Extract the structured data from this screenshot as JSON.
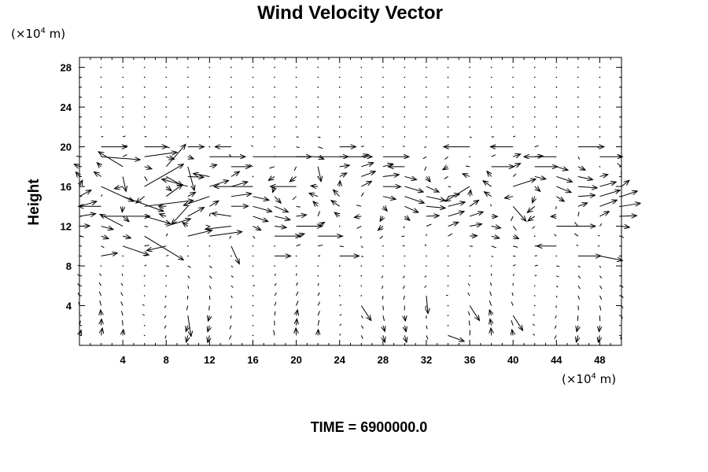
{
  "chart_data": {
    "type": "vector_field",
    "title": "Wind Velocity Vector",
    "x_unit": {
      "prefix": "(×10",
      "exp": "4",
      "suffix": " m)"
    },
    "y_unit": {
      "prefix": "(×10",
      "exp": "4",
      "suffix": " m)"
    },
    "ylabel": "Height",
    "xlabel": "",
    "xlim": [
      0,
      50
    ],
    "ylim": [
      0,
      29
    ],
    "x_ticks": [
      4,
      8,
      12,
      16,
      20,
      24,
      28,
      32,
      36,
      40,
      44,
      48
    ],
    "y_ticks": [
      4,
      8,
      12,
      16,
      20,
      24,
      28
    ],
    "x_ticks_minor": [
      1,
      2,
      3,
      5,
      6,
      7,
      9,
      10,
      11,
      13,
      14,
      15,
      17,
      18,
      19,
      21,
      22,
      23,
      25,
      26,
      27,
      29,
      30,
      31,
      33,
      34,
      35,
      37,
      38,
      39,
      41,
      42,
      43,
      45,
      46,
      47,
      49
    ],
    "y_ticks_minor": [
      1,
      2,
      3,
      5,
      6,
      7,
      9,
      10,
      11,
      13,
      14,
      15,
      17,
      18,
      19,
      21,
      22,
      23,
      25,
      26,
      27
    ],
    "grid": false,
    "vector_grid": {
      "x_start": 0,
      "x_step": 2,
      "x_count": 26,
      "y_start": 0,
      "y_step": 1,
      "y_count": 29
    },
    "vector_scale_units_per_speed": 1.5,
    "vectors": [
      {
        "x": 2,
        "y": 20,
        "u": 1.6,
        "v": 0.0
      },
      {
        "x": 6,
        "y": 20,
        "u": 1.4,
        "v": 0.0
      },
      {
        "x": 10,
        "y": 20,
        "u": 1.0,
        "v": 0.0
      },
      {
        "x": 14,
        "y": 20,
        "u": -1.0,
        "v": 0.0
      },
      {
        "x": 24,
        "y": 20,
        "u": 1.0,
        "v": 0.0
      },
      {
        "x": 36,
        "y": 20,
        "u": -1.6,
        "v": 0.0
      },
      {
        "x": 40,
        "y": 20,
        "u": -1.4,
        "v": 0.0
      },
      {
        "x": 46,
        "y": 20,
        "u": 1.6,
        "v": 0.0
      },
      {
        "x": 2,
        "y": 19,
        "u": 2.4,
        "v": -0.2
      },
      {
        "x": 6,
        "y": 19,
        "u": 2.0,
        "v": 0.3
      },
      {
        "x": 12,
        "y": 19,
        "u": 2.2,
        "v": 0.0
      },
      {
        "x": 16,
        "y": 19,
        "u": 3.6,
        "v": 0.0
      },
      {
        "x": 20,
        "y": 19,
        "u": 3.2,
        "v": 0.0
      },
      {
        "x": 24,
        "y": 19,
        "u": 2.0,
        "v": 0.0
      },
      {
        "x": 28,
        "y": 19,
        "u": 1.6,
        "v": 0.0
      },
      {
        "x": 44,
        "y": 19,
        "u": -2.0,
        "v": 0.0
      },
      {
        "x": 48,
        "y": 19,
        "u": 1.4,
        "v": 0.0
      },
      {
        "x": 4,
        "y": 18,
        "u": -1.5,
        "v": 1.0
      },
      {
        "x": 8,
        "y": 18,
        "u": 1.2,
        "v": 1.5
      },
      {
        "x": 10,
        "y": 18,
        "u": 0.4,
        "v": -1.6
      },
      {
        "x": 14,
        "y": 18,
        "u": 1.2,
        "v": 0.0
      },
      {
        "x": 22,
        "y": 18,
        "u": 0.2,
        "v": -1.0
      },
      {
        "x": 30,
        "y": 18,
        "u": -1.0,
        "v": 0.0
      },
      {
        "x": 38,
        "y": 18,
        "u": 1.4,
        "v": 0.0
      },
      {
        "x": 42,
        "y": 18,
        "u": 1.4,
        "v": 0.0
      },
      {
        "x": 4,
        "y": 17,
        "u": 0.2,
        "v": -1.0
      },
      {
        "x": 8,
        "y": 17,
        "u": 1.0,
        "v": -0.6
      },
      {
        "x": 12,
        "y": 17,
        "u": -1.0,
        "v": 0.2
      },
      {
        "x": 16,
        "y": 16,
        "u": -2.4,
        "v": 0.0
      },
      {
        "x": 20,
        "y": 16,
        "u": -1.6,
        "v": 0.0
      },
      {
        "x": 2,
        "y": 16,
        "u": 2.0,
        "v": -1.0
      },
      {
        "x": 6,
        "y": 16,
        "u": 2.4,
        "v": 1.5
      },
      {
        "x": 10,
        "y": 16,
        "u": -1.6,
        "v": 0.5
      },
      {
        "x": 36,
        "y": 16,
        "u": -1.5,
        "v": -1.0
      },
      {
        "x": 40,
        "y": 16,
        "u": 1.4,
        "v": 0.5
      },
      {
        "x": 4,
        "y": 15,
        "u": 2.5,
        "v": -1.0
      },
      {
        "x": 8,
        "y": 15,
        "u": 1.0,
        "v": 0.8
      },
      {
        "x": 12,
        "y": 15,
        "u": -1.6,
        "v": -0.6
      },
      {
        "x": 2,
        "y": 14,
        "u": -1.4,
        "v": 0.0
      },
      {
        "x": 6,
        "y": 14,
        "u": 3.0,
        "v": 0.4
      },
      {
        "x": 10,
        "y": 14,
        "u": -1.0,
        "v": -1.2
      },
      {
        "x": 40,
        "y": 14,
        "u": 0.8,
        "v": -1.0
      },
      {
        "x": 2,
        "y": 13,
        "u": 3.0,
        "v": 0.0
      },
      {
        "x": 6,
        "y": 13,
        "u": 1.6,
        "v": -0.5
      },
      {
        "x": 10,
        "y": 13,
        "u": 1.0,
        "v": 0.6
      },
      {
        "x": 14,
        "y": 13,
        "u": -1.2,
        "v": 0.2
      },
      {
        "x": 4,
        "y": 12,
        "u": -1.4,
        "v": 0.8
      },
      {
        "x": 8,
        "y": 12,
        "u": 1.5,
        "v": 0.5
      },
      {
        "x": 14,
        "y": 12,
        "u": -1.6,
        "v": -0.2
      },
      {
        "x": 20,
        "y": 12,
        "u": 1.6,
        "v": 0.0
      },
      {
        "x": 44,
        "y": 12,
        "u": 2.4,
        "v": 0.0
      },
      {
        "x": 6,
        "y": 11,
        "u": 2.4,
        "v": -1.6
      },
      {
        "x": 10,
        "y": 11,
        "u": 1.5,
        "v": 0.4
      },
      {
        "x": 12,
        "y": 11,
        "u": 2.0,
        "v": 0.3
      },
      {
        "x": 18,
        "y": 11,
        "u": 1.6,
        "v": 0.0
      },
      {
        "x": 22,
        "y": 11,
        "u": 1.5,
        "v": 0.0
      },
      {
        "x": 4,
        "y": 10,
        "u": 1.6,
        "v": -0.6
      },
      {
        "x": 8,
        "y": 10,
        "u": -1.2,
        "v": -0.3
      },
      {
        "x": 14,
        "y": 10,
        "u": 0.5,
        "v": -1.2
      },
      {
        "x": 44,
        "y": 10,
        "u": -1.2,
        "v": 0.0
      },
      {
        "x": 2,
        "y": 9,
        "u": 1.0,
        "v": 0.2
      },
      {
        "x": 18,
        "y": 9,
        "u": 1.0,
        "v": 0.0
      },
      {
        "x": 24,
        "y": 9,
        "u": 1.2,
        "v": 0.0
      },
      {
        "x": 46,
        "y": 9,
        "u": 1.4,
        "v": 0.0
      },
      {
        "x": 48,
        "y": 9,
        "u": 1.4,
        "v": -0.3
      },
      {
        "x": 32,
        "y": 5,
        "u": 0.1,
        "v": -1.2
      },
      {
        "x": 26,
        "y": 4,
        "u": 0.6,
        "v": -1.0
      },
      {
        "x": 36,
        "y": 4,
        "u": 0.6,
        "v": -1.0
      },
      {
        "x": 10,
        "y": 3,
        "u": 0.2,
        "v": -1.4
      },
      {
        "x": 40,
        "y": 3,
        "u": 0.6,
        "v": -1.0
      },
      {
        "x": 34,
        "y": 1,
        "u": 1.0,
        "v": -0.4
      }
    ]
  },
  "footer": {
    "time_label": "TIME = 6900000.0"
  }
}
